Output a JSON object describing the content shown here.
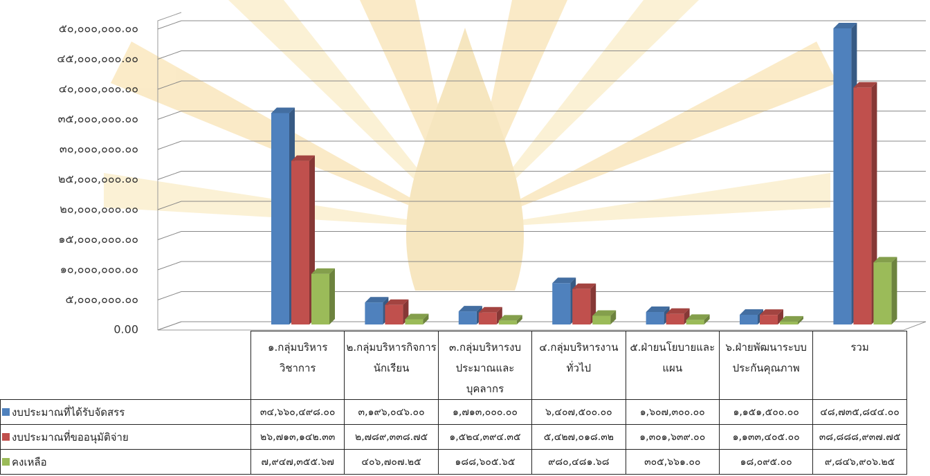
{
  "chart_data": {
    "type": "bar3d",
    "categories": [
      "๑.กลุ่มบริหารวิชาการ",
      "๒.กลุ่มบริหารกิจการนักเรียน",
      "๓.กลุ่มบริหารงบประมาณและบุคลากร",
      "๔.กลุ่มบริหารงานทั่วไป",
      "๕.ฝ่ายนโยบายและแผน",
      "๖.ฝ่ายพัฒนาระบบประกันคุณภาพ",
      "รวม"
    ],
    "series": [
      {
        "name": "งบประมาณที่ได้รับจัดสรร",
        "color": "#4f81bd",
        "values": [
          34660498.0,
          3196046.0,
          1713000.0,
          6407500.0,
          1607300.0,
          1151500.0,
          48735844.0
        ],
        "value_labels": [
          "๓๔,๖๖๐,๔๙๘.๐๐",
          "๓,๑๙๖,๐๔๖.๐๐",
          "๑,๗๑๓,๐๐๐.๐๐",
          "๖,๔๐๗,๕๐๐.๐๐",
          "๑,๖๐๗,๓๐๐.๐๐",
          "๑,๑๕๑,๕๐๐.๐๐",
          "๔๘,๗๓๕,๘๔๔.๐๐"
        ]
      },
      {
        "name": "งบประมาณที่ขออนุมัติจ่าย",
        "color": "#c0504d",
        "values": [
          26713142.33,
          2789338.75,
          1524394.35,
          5427018.32,
          1301639.0,
          1133405.0,
          38888937.75
        ],
        "value_labels": [
          "๒๖,๗๑๓,๑๔๒.๓๓",
          "๒,๗๘๙,๓๓๘.๗๕",
          "๑,๕๒๔,๓๙๔.๓๕",
          "๕,๔๒๗,๐๑๘.๓๒",
          "๑,๓๐๑,๖๓๙.๐๐",
          "๑,๑๓๓,๔๐๕.๐๐",
          "๓๘,๘๘๘,๙๓๗.๗๕"
        ]
      },
      {
        "name": "คงเหลือ",
        "color": "#9bbb59",
        "values": [
          7947355.67,
          406707.25,
          188605.65,
          980481.68,
          305661.0,
          18095.0,
          9846906.25
        ],
        "value_labels": [
          "๗,๙๔๗,๓๕๕.๖๗",
          "๔๐๖,๗๐๗.๒๕",
          "๑๘๘,๖๐๕.๖๕",
          "๙๘๐,๔๘๑.๖๘",
          "๓๐๕,๖๖๑.๐๐",
          "๑๘,๐๙๕.๐๐",
          "๙,๘๔๖,๙๐๖.๒๕"
        ]
      }
    ],
    "ylim": [
      0,
      50000000
    ],
    "yticks": [
      {
        "value": 0,
        "label": "0.00"
      },
      {
        "value": 5000000,
        "label": "๕,๐๐๐,๐๐๐.๐๐"
      },
      {
        "value": 10000000,
        "label": "๑๐,๐๐๐,๐๐๐.๐๐"
      },
      {
        "value": 15000000,
        "label": "๑๕,๐๐๐,๐๐๐.๐๐"
      },
      {
        "value": 20000000,
        "label": "๒๐,๐๐๐,๐๐๐.๐๐"
      },
      {
        "value": 25000000,
        "label": "๒๕,๐๐๐,๐๐๐.๐๐"
      },
      {
        "value": 30000000,
        "label": "๓๐,๐๐๐,๐๐๐.๐๐"
      },
      {
        "value": 35000000,
        "label": "๓๕,๐๐๐,๐๐๐.๐๐"
      },
      {
        "value": 40000000,
        "label": "๔๐,๐๐๐,๐๐๐.๐๐"
      },
      {
        "value": 45000000,
        "label": "๔๕,๐๐๐,๐๐๐.๐๐"
      },
      {
        "value": 50000000,
        "label": "๕๐,๐๐๐,๐๐๐.๐๐"
      }
    ],
    "grid": true
  }
}
